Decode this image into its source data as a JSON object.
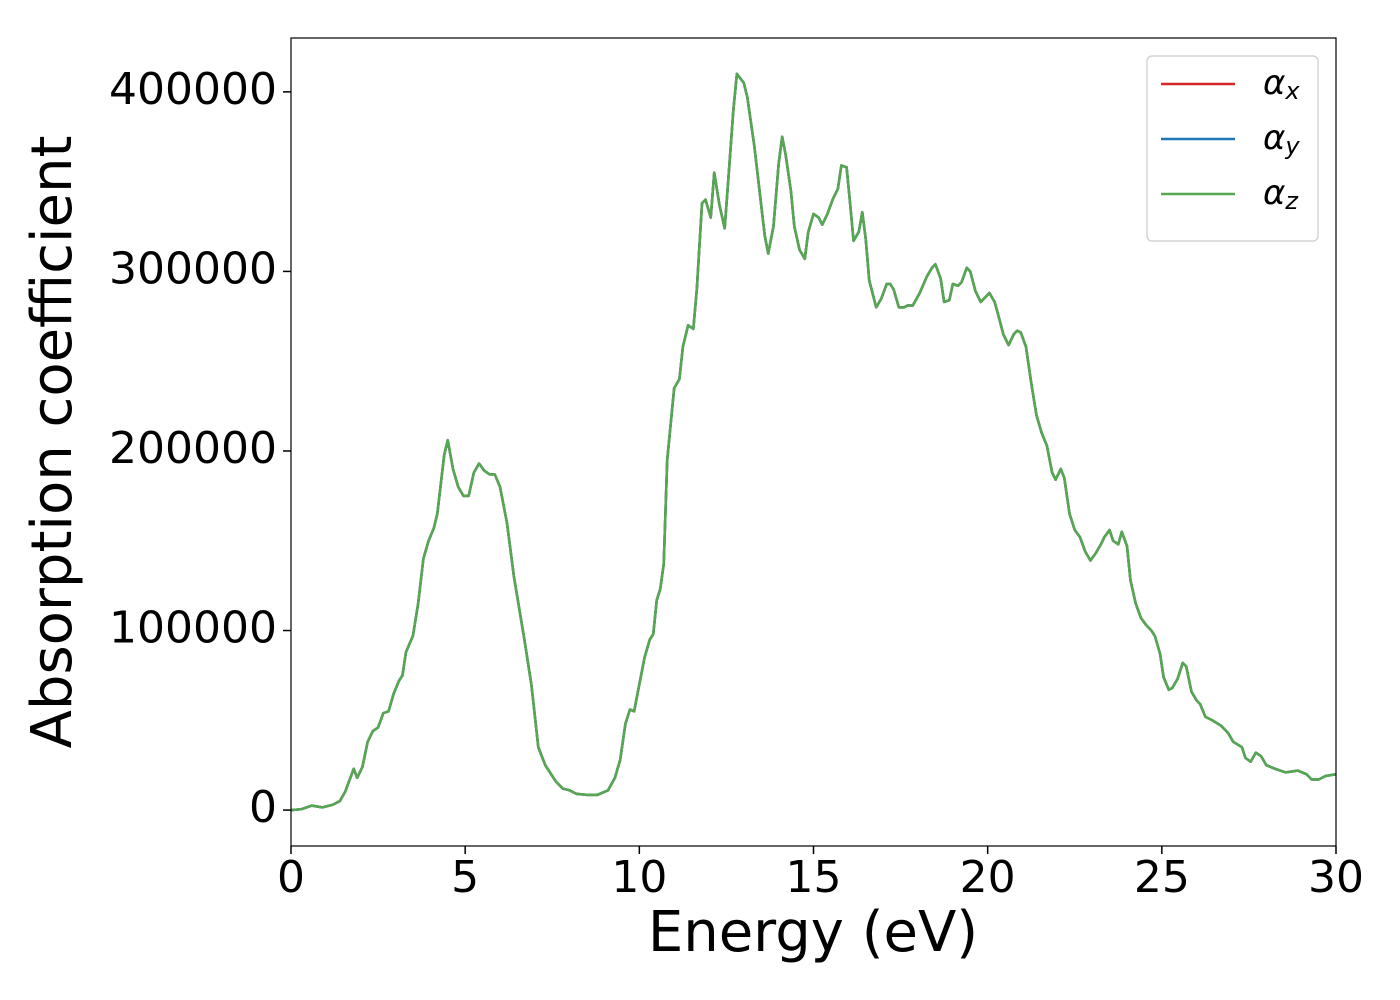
{
  "chart_data": {
    "type": "line",
    "xlabel": "Energy (eV)",
    "ylabel": "Absorption coefficient",
    "x": [
      0,
      0.3,
      0.6,
      0.9,
      1.2,
      1.4,
      1.55,
      1.8,
      1.9,
      2.05,
      2.2,
      2.35,
      2.5,
      2.65,
      2.8,
      2.95,
      3.1,
      3.2,
      3.3,
      3.5,
      3.65,
      3.8,
      3.95,
      4.1,
      4.2,
      4.4,
      4.5,
      4.65,
      4.8,
      4.95,
      5.1,
      5.25,
      5.4,
      5.55,
      5.7,
      5.85,
      6.0,
      6.2,
      6.4,
      6.7,
      6.9,
      7.1,
      7.3,
      7.6,
      7.8,
      8.0,
      8.2,
      8.5,
      8.8,
      9.1,
      9.3,
      9.45,
      9.6,
      9.73,
      9.85,
      10.0,
      10.15,
      10.3,
      10.4,
      10.5,
      10.6,
      10.7,
      10.8,
      11.0,
      11.15,
      11.25,
      11.4,
      11.55,
      11.65,
      11.8,
      11.9,
      12.05,
      12.15,
      12.3,
      12.45,
      12.55,
      12.7,
      12.8,
      13.0,
      13.1,
      13.3,
      13.45,
      13.6,
      13.7,
      13.85,
      14.0,
      14.1,
      14.2,
      14.35,
      14.45,
      14.6,
      14.75,
      14.85,
      15.0,
      15.15,
      15.25,
      15.4,
      15.55,
      15.7,
      15.8,
      15.95,
      16.05,
      16.15,
      16.3,
      16.4,
      16.5,
      16.6,
      16.8,
      16.95,
      17.1,
      17.2,
      17.3,
      17.45,
      17.6,
      17.7,
      17.85,
      18.05,
      18.25,
      18.4,
      18.5,
      18.65,
      18.75,
      18.9,
      19.0,
      19.15,
      19.25,
      19.4,
      19.5,
      19.65,
      19.8,
      19.9,
      20.05,
      20.2,
      20.3,
      20.45,
      20.6,
      20.75,
      20.85,
      20.95,
      21.1,
      21.25,
      21.4,
      21.55,
      21.7,
      21.85,
      21.95,
      22.1,
      22.2,
      22.35,
      22.5,
      22.65,
      22.8,
      22.95,
      23.1,
      23.25,
      23.35,
      23.5,
      23.6,
      23.75,
      23.85,
      24.0,
      24.1,
      24.25,
      24.4,
      24.55,
      24.7,
      24.8,
      24.95,
      25.05,
      25.2,
      25.3,
      25.45,
      25.6,
      25.7,
      25.85,
      26.0,
      26.1,
      26.25,
      26.45,
      26.7,
      26.9,
      27.05,
      27.3,
      27.4,
      27.55,
      27.7,
      27.85,
      28.0,
      28.25,
      28.55,
      28.9,
      29.15,
      29.3,
      29.5,
      29.7,
      30.0
    ],
    "series": [
      {
        "name": "αx",
        "color": "#d62728",
        "values": [
          0,
          500,
          2500,
          1500,
          3000,
          5000,
          10000,
          23000,
          18000,
          24000,
          38000,
          44000,
          46000,
          54000,
          55000,
          65000,
          72000,
          75000,
          88000,
          97000,
          115000,
          140000,
          150000,
          157000,
          165000,
          198000,
          206000,
          190000,
          180000,
          175000,
          175000,
          188000,
          193000,
          189000,
          187000,
          187000,
          180000,
          160000,
          130000,
          95000,
          70000,
          35000,
          25000,
          16000,
          12000,
          11000,
          9000,
          8500,
          8500,
          11000,
          18000,
          28000,
          48000,
          56000,
          55000,
          70000,
          85000,
          95000,
          98000,
          117000,
          123000,
          137000,
          195000,
          235000,
          240000,
          258000,
          270000,
          268000,
          290000,
          338000,
          340000,
          330000,
          355000,
          337000,
          324000,
          350000,
          390000,
          410000,
          405000,
          397000,
          370000,
          345000,
          320000,
          310000,
          325000,
          360000,
          375000,
          365000,
          345000,
          325000,
          312000,
          307000,
          322000,
          332000,
          330000,
          326000,
          332000,
          340000,
          346000,
          359000,
          358000,
          338000,
          317000,
          322000,
          333000,
          318000,
          295000,
          280000,
          285000,
          293000,
          293000,
          290000,
          280000,
          280000,
          281000,
          281000,
          288000,
          297000,
          302000,
          304000,
          296000,
          283000,
          284000,
          293000,
          292000,
          294000,
          302000,
          300000,
          289000,
          283000,
          285000,
          288000,
          283000,
          276000,
          265000,
          259000,
          265000,
          267000,
          266000,
          258000,
          238000,
          220000,
          210000,
          203000,
          188000,
          184000,
          190000,
          185000,
          165000,
          156000,
          152000,
          144000,
          139000,
          143000,
          148000,
          152000,
          156000,
          150000,
          148000,
          155000,
          147000,
          128000,
          115000,
          107000,
          103000,
          100000,
          97000,
          87000,
          74000,
          67000,
          68000,
          73000,
          82000,
          80000,
          66000,
          61000,
          59000,
          52000,
          50000,
          47000,
          43000,
          38000,
          35000,
          29000,
          27000,
          32000,
          30000,
          25000,
          23000,
          21000,
          22000,
          20000,
          17000,
          17000,
          19000,
          20000
        ]
      },
      {
        "name": "αy",
        "color": "#1f77b4",
        "values": [
          0,
          500,
          2500,
          1500,
          3000,
          5000,
          10000,
          23000,
          18000,
          24000,
          38000,
          44000,
          46000,
          54000,
          55000,
          65000,
          72000,
          75000,
          88000,
          97000,
          115000,
          140000,
          150000,
          157000,
          165000,
          198000,
          206000,
          190000,
          180000,
          175000,
          175000,
          188000,
          193000,
          189000,
          187000,
          187000,
          180000,
          160000,
          130000,
          95000,
          70000,
          35000,
          25000,
          16000,
          12000,
          11000,
          9000,
          8500,
          8500,
          11000,
          18000,
          28000,
          48000,
          56000,
          55000,
          70000,
          85000,
          95000,
          98000,
          117000,
          123000,
          137000,
          195000,
          235000,
          240000,
          258000,
          270000,
          268000,
          290000,
          338000,
          340000,
          330000,
          355000,
          337000,
          324000,
          350000,
          390000,
          410000,
          405000,
          397000,
          370000,
          345000,
          320000,
          310000,
          325000,
          360000,
          375000,
          365000,
          345000,
          325000,
          312000,
          307000,
          322000,
          332000,
          330000,
          326000,
          332000,
          340000,
          346000,
          359000,
          358000,
          338000,
          317000,
          322000,
          333000,
          318000,
          295000,
          280000,
          285000,
          293000,
          293000,
          290000,
          280000,
          280000,
          281000,
          281000,
          288000,
          297000,
          302000,
          304000,
          296000,
          283000,
          284000,
          293000,
          292000,
          294000,
          302000,
          300000,
          289000,
          283000,
          285000,
          288000,
          283000,
          276000,
          265000,
          259000,
          265000,
          267000,
          266000,
          258000,
          238000,
          220000,
          210000,
          203000,
          188000,
          184000,
          190000,
          185000,
          165000,
          156000,
          152000,
          144000,
          139000,
          143000,
          148000,
          152000,
          156000,
          150000,
          148000,
          155000,
          147000,
          128000,
          115000,
          107000,
          103000,
          100000,
          97000,
          87000,
          74000,
          67000,
          68000,
          73000,
          82000,
          80000,
          66000,
          61000,
          59000,
          52000,
          50000,
          47000,
          43000,
          38000,
          35000,
          29000,
          27000,
          32000,
          30000,
          25000,
          23000,
          21000,
          22000,
          20000,
          17000,
          17000,
          19000,
          20000
        ]
      },
      {
        "name": "αz",
        "color": "#55a84f",
        "values": [
          0,
          500,
          2500,
          1500,
          3000,
          5000,
          10000,
          23000,
          18000,
          24000,
          38000,
          44000,
          46000,
          54000,
          55000,
          65000,
          72000,
          75000,
          88000,
          97000,
          115000,
          140000,
          150000,
          157000,
          165000,
          198000,
          206000,
          190000,
          180000,
          175000,
          175000,
          188000,
          193000,
          189000,
          187000,
          187000,
          180000,
          160000,
          130000,
          95000,
          70000,
          35000,
          25000,
          16000,
          12000,
          11000,
          9000,
          8500,
          8500,
          11000,
          18000,
          28000,
          48000,
          56000,
          55000,
          70000,
          85000,
          95000,
          98000,
          117000,
          123000,
          137000,
          195000,
          235000,
          240000,
          258000,
          270000,
          268000,
          290000,
          338000,
          340000,
          330000,
          355000,
          337000,
          324000,
          350000,
          390000,
          410000,
          405000,
          397000,
          370000,
          345000,
          320000,
          310000,
          325000,
          360000,
          375000,
          365000,
          345000,
          325000,
          312000,
          307000,
          322000,
          332000,
          330000,
          326000,
          332000,
          340000,
          346000,
          359000,
          358000,
          338000,
          317000,
          322000,
          333000,
          318000,
          295000,
          280000,
          285000,
          293000,
          293000,
          290000,
          280000,
          280000,
          281000,
          281000,
          288000,
          297000,
          302000,
          304000,
          296000,
          283000,
          284000,
          293000,
          292000,
          294000,
          302000,
          300000,
          289000,
          283000,
          285000,
          288000,
          283000,
          276000,
          265000,
          259000,
          265000,
          267000,
          266000,
          258000,
          238000,
          220000,
          210000,
          203000,
          188000,
          184000,
          190000,
          185000,
          165000,
          156000,
          152000,
          144000,
          139000,
          143000,
          148000,
          152000,
          156000,
          150000,
          148000,
          155000,
          147000,
          128000,
          115000,
          107000,
          103000,
          100000,
          97000,
          87000,
          74000,
          67000,
          68000,
          73000,
          82000,
          80000,
          66000,
          61000,
          59000,
          52000,
          50000,
          47000,
          43000,
          38000,
          35000,
          29000,
          27000,
          32000,
          30000,
          25000,
          23000,
          21000,
          22000,
          20000,
          17000,
          17000,
          19000,
          20000
        ]
      }
    ],
    "xlim": [
      0,
      30
    ],
    "xticks": [
      0,
      5,
      10,
      15,
      20,
      25,
      30
    ],
    "ylim": [
      -20000,
      430000
    ],
    "yticks": [
      0,
      100000,
      200000,
      300000,
      400000
    ],
    "grid": false,
    "legend": "upper right"
  }
}
